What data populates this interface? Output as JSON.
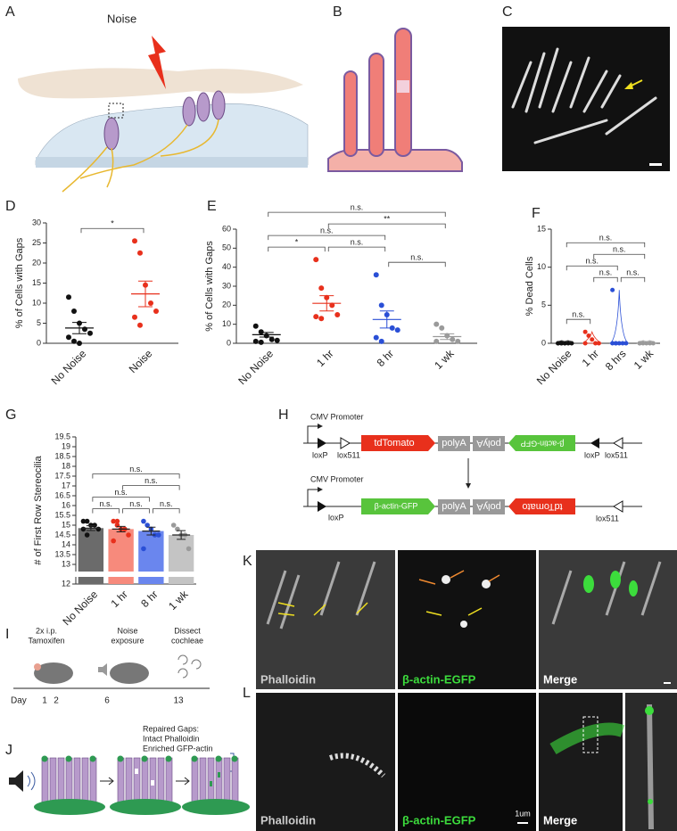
{
  "panel_labels": [
    "A",
    "B",
    "C",
    "D",
    "E",
    "F",
    "G",
    "H",
    "I",
    "J",
    "K",
    "L"
  ],
  "panel_a": {
    "stimulus": "Noise"
  },
  "panel_h": {
    "constructs": [
      {
        "promoter": "CMV Promoter",
        "sites": [
          "loxP",
          "lox511",
          "loxP",
          "lox511"
        ],
        "elements": [
          "tdTomato",
          "polyA",
          "polyA",
          "β-actin-GFP"
        ]
      },
      {
        "promoter": "CMV Promoter",
        "sites": [
          "loxP",
          "lox511"
        ],
        "elements": [
          "β-actin-GFP",
          "polyA",
          "polyA",
          "tdTomato"
        ]
      }
    ]
  },
  "panel_i": {
    "steps": [
      [
        "2x i.p.",
        "Tamoxifen"
      ],
      [
        "Noise",
        "exposure"
      ],
      [
        "Dissect",
        "cochleae"
      ]
    ],
    "axis_label": "Day",
    "days": [
      1,
      2,
      6,
      13
    ]
  },
  "panel_j": {
    "legend": [
      "Repaired Gaps:",
      "Intact Phalloidin",
      "Enriched GFP-actin"
    ]
  },
  "panel_k": {
    "channels": [
      "Phalloidin",
      "β-actin-EGFP",
      "Merge"
    ]
  },
  "panel_l": {
    "channels": [
      "Phalloidin",
      "β-actin-EGFP",
      "Merge"
    ],
    "scale_bar": "1um"
  },
  "chart_data": [
    {
      "type": "dotplot",
      "ylabel": "% of Cells with Gaps",
      "categories": [
        "No Noise",
        "Noise"
      ],
      "ylim": [
        0,
        30
      ],
      "yticks": [
        0,
        5,
        10,
        15,
        20,
        25,
        30
      ],
      "groups": [
        {
          "color": "#111111",
          "points": [
            11.5,
            8,
            5,
            3.5,
            2.5,
            1.5,
            0.5,
            0
          ],
          "mean": 3.8,
          "sem": 1.4
        },
        {
          "color": "#e8301c",
          "points": [
            25.5,
            22.5,
            14.5,
            10,
            8,
            6.5,
            4.5
          ],
          "mean": 12.3,
          "sem": 3.2
        }
      ],
      "comparisons": [
        {
          "from": 0,
          "to": 1,
          "label": "*"
        }
      ]
    },
    {
      "type": "dotplot",
      "ylabel": "% of Cells with Gaps",
      "categories": [
        "No Noise",
        "1 hr",
        "8 hr",
        "1 wk"
      ],
      "ylim": [
        0,
        60
      ],
      "yticks": [
        0,
        10,
        20,
        30,
        40,
        50,
        60
      ],
      "groups": [
        {
          "color": "#111111",
          "points": [
            9,
            6,
            4,
            2,
            1.5,
            1,
            0.5
          ],
          "mean": 4.5,
          "sem": 1.2
        },
        {
          "color": "#e8301c",
          "points": [
            44,
            29,
            24,
            20,
            15,
            14,
            13
          ],
          "mean": 21,
          "sem": 4
        },
        {
          "color": "#2a4fd6",
          "points": [
            36,
            20,
            15,
            8,
            7,
            3,
            1
          ],
          "mean": 12.5,
          "sem": 4.5
        },
        {
          "color": "#9a9a9a",
          "points": [
            10,
            8,
            4,
            2,
            1,
            1
          ],
          "mean": 3.5,
          "sem": 1.5
        }
      ],
      "comparisons": [
        {
          "from": 0,
          "to": 1,
          "label": "*"
        },
        {
          "from": 1,
          "to": 2,
          "label": "n.s."
        },
        {
          "from": 2,
          "to": 3,
          "label": "n.s."
        },
        {
          "from": 0,
          "to": 2,
          "label": "n.s."
        },
        {
          "from": 1,
          "to": 3,
          "label": "**"
        },
        {
          "from": 0,
          "to": 3,
          "label": "n.s."
        }
      ]
    },
    {
      "type": "violin",
      "ylabel": "% Dead Cells",
      "categories": [
        "No Noise",
        "1 hr",
        "8 hrs",
        "1 wk"
      ],
      "ylim": [
        0,
        15
      ],
      "yticks": [
        0,
        5,
        10,
        15
      ],
      "groups": [
        {
          "color": "#111111",
          "points": [
            0,
            0,
            0,
            0,
            0,
            0,
            0,
            0
          ]
        },
        {
          "color": "#e8301c",
          "points": [
            1.5,
            1,
            0.5,
            0,
            0,
            0
          ]
        },
        {
          "color": "#2a4fd6",
          "points": [
            7,
            0,
            0,
            0,
            0,
            0,
            0
          ]
        },
        {
          "color": "#9a9a9a",
          "points": [
            0,
            0,
            0,
            0,
            0,
            0
          ]
        }
      ],
      "comparisons": [
        {
          "from": 0,
          "to": 1,
          "label": "n.s."
        },
        {
          "from": 2,
          "to": 3,
          "label": "n.s."
        },
        {
          "from": 1,
          "to": 2,
          "label": "n.s."
        },
        {
          "from": 0,
          "to": 2,
          "label": "n.s."
        },
        {
          "from": 1,
          "to": 3,
          "label": "n.s."
        },
        {
          "from": 0,
          "to": 3,
          "label": "n.s."
        }
      ]
    },
    {
      "type": "bar",
      "ylabel": "# of First Row Stereocilia",
      "categories": [
        "No Noise",
        "1 hr",
        "8 hr",
        "1 wk"
      ],
      "ylim": [
        12,
        19.5
      ],
      "yticks": [
        12,
        13,
        13.5,
        14,
        14.5,
        15,
        15.5,
        16,
        16.5,
        17,
        17.5,
        18,
        18.5,
        19,
        19.5
      ],
      "groups": [
        {
          "color": "#111111",
          "bar_color": "#6b6b6b",
          "points": [
            15.2,
            15.2,
            15,
            15,
            14.8,
            14.8,
            14.5
          ],
          "mean": 14.85,
          "sem": 0.12
        },
        {
          "color": "#e8301c",
          "bar_color": "#f78a7c",
          "points": [
            15.2,
            15,
            14.8,
            14.8,
            14.5,
            14.2,
            15.2
          ],
          "mean": 14.8,
          "sem": 0.14
        },
        {
          "color": "#2a4fd6",
          "bar_color": "#6a86ee",
          "points": [
            15.2,
            15,
            14.8,
            14.5,
            14.5,
            13.8
          ],
          "mean": 14.7,
          "sem": 0.2
        },
        {
          "color": "#9a9a9a",
          "bar_color": "#c4c4c4",
          "points": [
            15,
            14.8,
            14.5,
            14.5,
            13.8
          ],
          "mean": 14.5,
          "sem": 0.22
        }
      ],
      "comparisons": [
        {
          "from": 0,
          "to": 1,
          "label": "n.s."
        },
        {
          "from": 1,
          "to": 2,
          "label": "n.s."
        },
        {
          "from": 2,
          "to": 3,
          "label": "n.s."
        },
        {
          "from": 0,
          "to": 2,
          "label": "n.s."
        },
        {
          "from": 1,
          "to": 3,
          "label": "n.s."
        },
        {
          "from": 0,
          "to": 3,
          "label": "n.s."
        }
      ]
    }
  ]
}
